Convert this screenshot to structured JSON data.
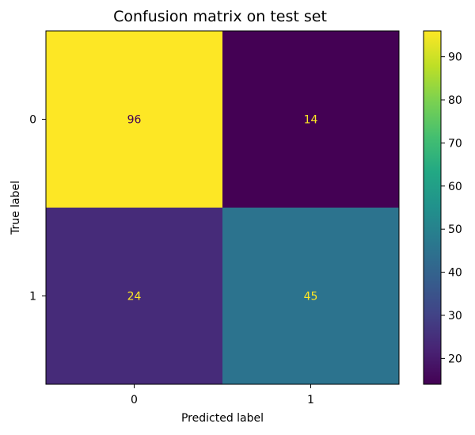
{
  "chart_data": {
    "type": "heatmap",
    "title": "Confusion matrix on test set",
    "xlabel": "Predicted label",
    "ylabel": "True label",
    "x_categories": [
      "0",
      "1"
    ],
    "y_categories": [
      "0",
      "1"
    ],
    "matrix": [
      [
        96,
        14
      ],
      [
        24,
        45
      ]
    ],
    "colormap": "viridis",
    "colorbar": {
      "min": 14,
      "max": 96,
      "ticks": [
        20,
        30,
        40,
        50,
        60,
        70,
        80,
        90
      ]
    }
  }
}
